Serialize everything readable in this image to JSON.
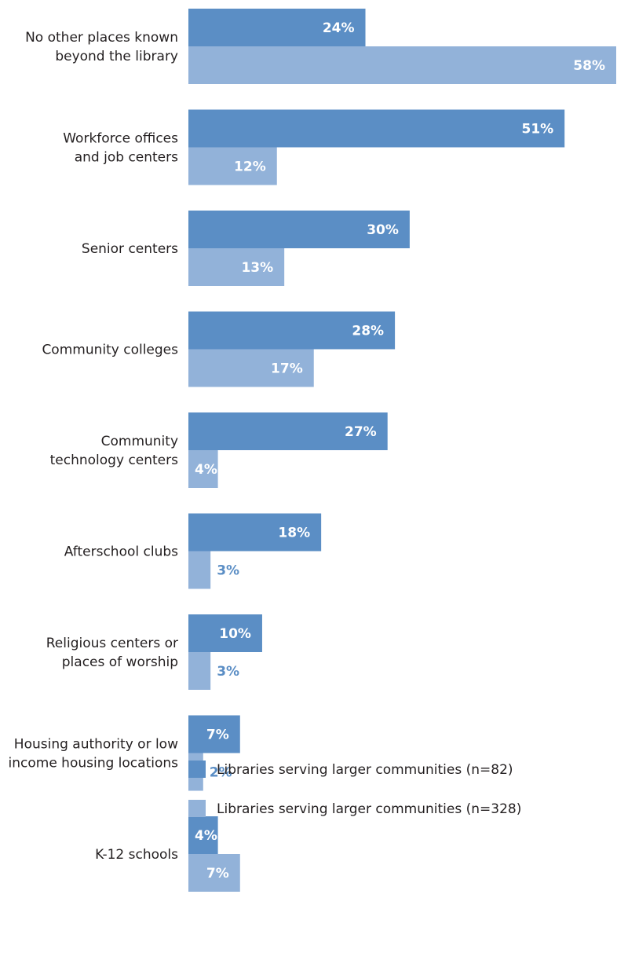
{
  "colors": {
    "series1": "#5b8ec5",
    "series2": "#92b2d9",
    "label_on_bar": "#ffffff",
    "label_outside": "#5b8ec5",
    "text": "#231f20"
  },
  "chart_data": {
    "type": "bar",
    "orientation": "horizontal",
    "categories": [
      [
        "No other places known",
        "beyond the library"
      ],
      [
        "Workforce offices",
        "and job centers"
      ],
      [
        "Senior centers"
      ],
      [
        "Community colleges"
      ],
      [
        "Community",
        "technology centers"
      ],
      [
        "Afterschool clubs"
      ],
      [
        "Religious centers or",
        "places of worship"
      ],
      [
        "Housing authority or low",
        "income housing locations"
      ],
      [
        "K-12 schools"
      ]
    ],
    "series": [
      {
        "name": "Libraries serving larger communities (n=82)",
        "values": [
          24,
          51,
          30,
          28,
          27,
          18,
          10,
          7,
          4
        ]
      },
      {
        "name": "Libraries serving larger communities (n=328)",
        "values": [
          58,
          12,
          13,
          17,
          4,
          3,
          3,
          2,
          7
        ]
      }
    ],
    "value_suffix": "%",
    "xlim": [
      0,
      58
    ],
    "grid": false,
    "legend_position": "bottom"
  }
}
